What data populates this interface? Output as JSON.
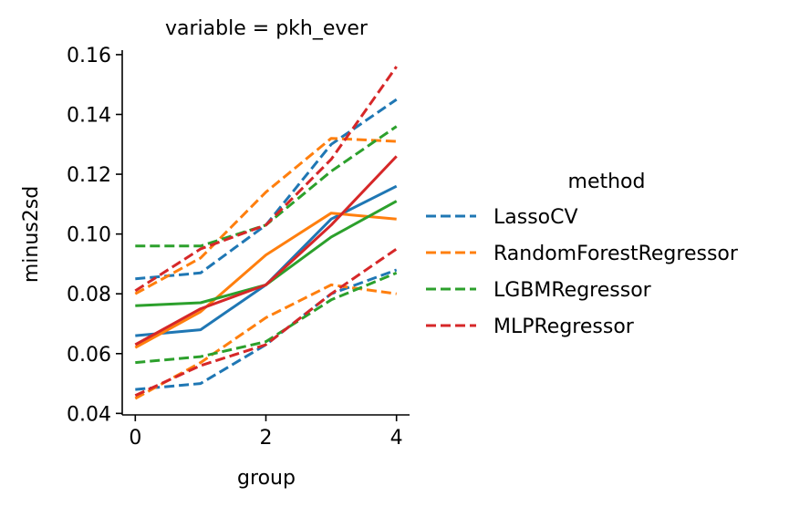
{
  "chart_data": {
    "type": "line",
    "title": "variable = pkh_ever",
    "xlabel": "group",
    "ylabel": "minus2sd",
    "xlim": [
      -0.2,
      4.2
    ],
    "ylim": [
      0.0395,
      0.1615
    ],
    "xticks": [
      0,
      2,
      4
    ],
    "xtick_labels": [
      "0",
      "2",
      "4"
    ],
    "yticks": [
      0.04,
      0.06,
      0.08,
      0.1,
      0.12,
      0.14,
      0.16
    ],
    "ytick_labels": [
      "0.04",
      "0.06",
      "0.08",
      "0.10",
      "0.12",
      "0.14",
      "0.16"
    ],
    "grid": false,
    "legend": {
      "title": "method",
      "placement": "right",
      "entries": [
        {
          "label": "LassoCV",
          "color": "#1f77b4"
        },
        {
          "label": "RandomForestRegressor",
          "color": "#ff7f0e"
        },
        {
          "label": "LGBMRegressor",
          "color": "#2ca02c"
        },
        {
          "label": "MLPRegressor",
          "color": "#d62728"
        }
      ]
    },
    "x": [
      0,
      1,
      2,
      3,
      4
    ],
    "series": [
      {
        "name": "LassoCV",
        "color": "#1f77b4",
        "style": "solid",
        "values": [
          0.066,
          0.068,
          0.083,
          0.105,
          0.116
        ]
      },
      {
        "name": "LassoCV",
        "color": "#1f77b4",
        "style": "dashed",
        "values": [
          0.085,
          0.087,
          0.103,
          0.13,
          0.145
        ]
      },
      {
        "name": "LassoCV",
        "color": "#1f77b4",
        "style": "dashed",
        "values": [
          0.048,
          0.05,
          0.063,
          0.08,
          0.088
        ]
      },
      {
        "name": "RandomForestRegressor",
        "color": "#ff7f0e",
        "style": "solid",
        "values": [
          0.062,
          0.074,
          0.093,
          0.107,
          0.105
        ]
      },
      {
        "name": "RandomForestRegressor",
        "color": "#ff7f0e",
        "style": "dashed",
        "values": [
          0.08,
          0.092,
          0.114,
          0.132,
          0.131
        ]
      },
      {
        "name": "RandomForestRegressor",
        "color": "#ff7f0e",
        "style": "dashed",
        "values": [
          0.045,
          0.057,
          0.072,
          0.083,
          0.08
        ]
      },
      {
        "name": "LGBMRegressor",
        "color": "#2ca02c",
        "style": "solid",
        "values": [
          0.076,
          0.077,
          0.083,
          0.099,
          0.111
        ]
      },
      {
        "name": "LGBMRegressor",
        "color": "#2ca02c",
        "style": "dashed",
        "values": [
          0.096,
          0.096,
          0.103,
          0.121,
          0.136
        ]
      },
      {
        "name": "LGBMRegressor",
        "color": "#2ca02c",
        "style": "dashed",
        "values": [
          0.057,
          0.059,
          0.064,
          0.078,
          0.087
        ]
      },
      {
        "name": "MLPRegressor",
        "color": "#d62728",
        "style": "solid",
        "values": [
          0.063,
          0.075,
          0.083,
          0.103,
          0.126
        ]
      },
      {
        "name": "MLPRegressor",
        "color": "#d62728",
        "style": "dashed",
        "values": [
          0.081,
          0.095,
          0.103,
          0.125,
          0.156
        ]
      },
      {
        "name": "MLPRegressor",
        "color": "#d62728",
        "style": "dashed",
        "values": [
          0.046,
          0.056,
          0.063,
          0.08,
          0.095
        ]
      }
    ]
  }
}
